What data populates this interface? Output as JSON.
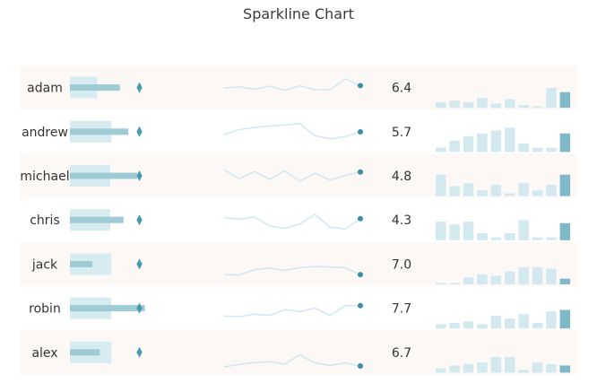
{
  "chart_data": {
    "type": "sparkline",
    "title": "Sparkline Chart",
    "colors": {
      "range": "#d6ecf1",
      "bar": "#9ecbd4",
      "marker": "#4a9aae",
      "line": "#d3e9ef",
      "endpoint": "#3c8ca3",
      "column": "#d3e9ef",
      "column_last": "#7fb9c7"
    },
    "rows": [
      {
        "name": "adam",
        "value": "6.4",
        "bullet": {
          "range": 0.45,
          "bar": 0.82,
          "marker": 1.14
        },
        "line": [
          5.6,
          6.0,
          5.2,
          6.2,
          4.9,
          6.3,
          5.1,
          5.0,
          8.6,
          6.4
        ],
        "columns": [
          2,
          2.5,
          2,
          3.5,
          1.5,
          3,
          1,
          0.5,
          7,
          5.5
        ]
      },
      {
        "name": "andrew",
        "value": "5.7",
        "bullet": {
          "range": 0.68,
          "bar": 0.96,
          "marker": 1.14
        },
        "line": [
          4.8,
          6.4,
          7.2,
          7.6,
          8.0,
          8.4,
          4.4,
          3.4,
          4.2,
          5.7
        ],
        "columns": [
          1.5,
          4,
          5.5,
          6.5,
          7.5,
          8.5,
          3,
          1.5,
          1.5,
          6.5
        ]
      },
      {
        "name": "michael",
        "value": "4.8",
        "bullet": {
          "range": 0.66,
          "bar": 1.1,
          "marker": 1.14
        },
        "line": [
          7.8,
          4.8,
          7.2,
          4.6,
          7.4,
          4.0,
          6.6,
          4.4,
          5.9,
          7.0
        ],
        "columns": [
          7.5,
          3.5,
          4.5,
          2,
          4,
          1,
          4.5,
          2,
          4,
          7.5
        ]
      },
      {
        "name": "chris",
        "value": "4.3",
        "bullet": {
          "range": 0.66,
          "bar": 0.88,
          "marker": 1.14
        },
        "line": [
          6.6,
          6.0,
          6.7,
          3.8,
          3.0,
          4.4,
          7.6,
          3.4,
          2.8,
          6.2
        ],
        "columns": [
          6.5,
          5.5,
          6.5,
          2.5,
          1,
          2.5,
          7,
          1,
          1,
          6
        ]
      },
      {
        "name": "jack",
        "value": "7.0",
        "bullet": {
          "range": 0.68,
          "bar": 0.37,
          "marker": 1.14
        },
        "line": [
          2.3,
          2.2,
          3.9,
          4.5,
          3.7,
          4.6,
          5.0,
          4.8,
          4.6,
          2.3
        ],
        "columns": [
          0.5,
          0.5,
          2.5,
          3.5,
          3,
          4.5,
          6,
          6,
          5.5,
          2
        ]
      },
      {
        "name": "robin",
        "value": "7.7",
        "bullet": {
          "range": 0.68,
          "bar": 1.23,
          "marker": 1.14
        },
        "line": [
          3.2,
          3.0,
          3.8,
          3.4,
          5.3,
          4.6,
          5.8,
          3.4,
          6.6,
          6.6
        ],
        "columns": [
          1.5,
          2,
          2.5,
          1.5,
          4.5,
          3.5,
          5,
          2,
          6,
          6.5
        ]
      },
      {
        "name": "alex",
        "value": "6.7",
        "bullet": {
          "range": 0.68,
          "bar": 0.49,
          "marker": 1.14
        },
        "line": [
          1.0,
          1.8,
          2.4,
          2.7,
          1.9,
          5.0,
          2.3,
          1.5,
          2.3,
          1.3
        ],
        "columns": [
          1.5,
          2.5,
          3,
          3.5,
          5.5,
          5.5,
          1,
          3.5,
          3,
          2.5
        ]
      }
    ]
  }
}
